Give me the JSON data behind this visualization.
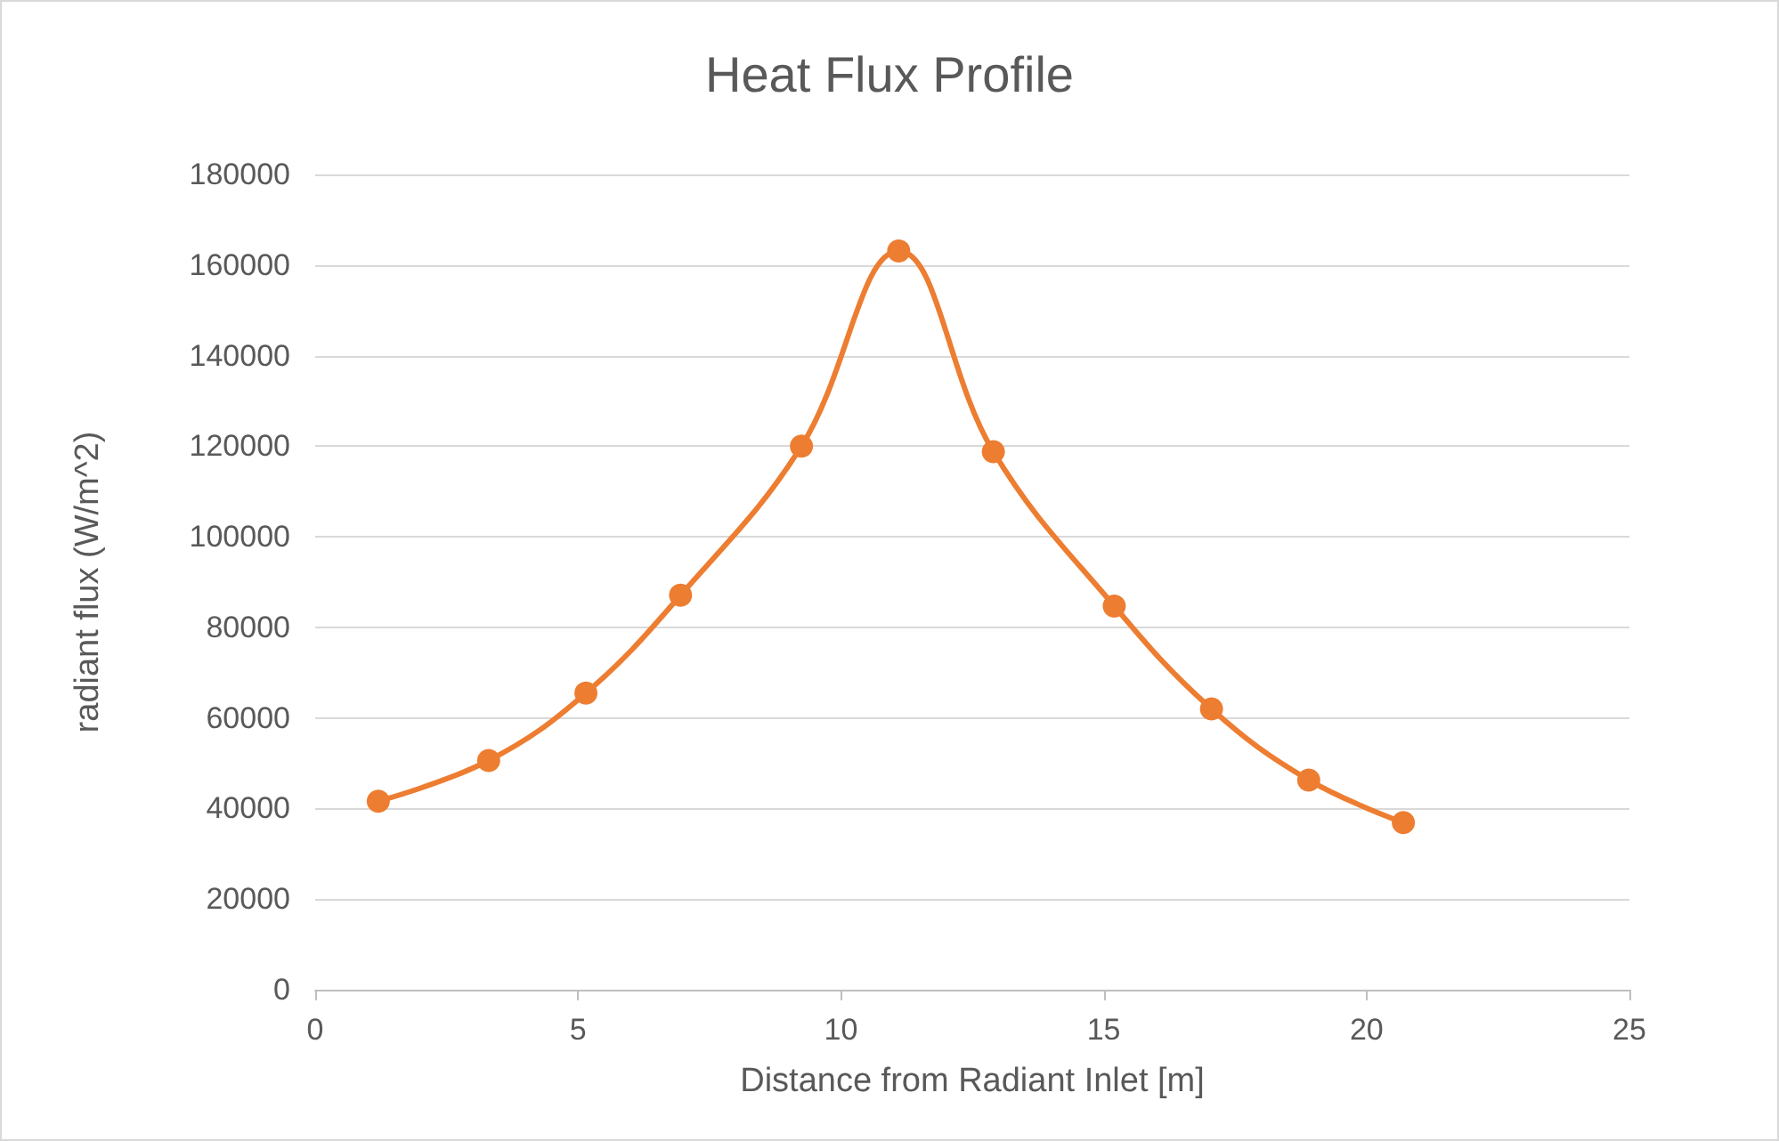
{
  "chart_data": {
    "type": "line",
    "title": "Heat Flux Profile",
    "xlabel": "Distance from Radiant Inlet [m]",
    "ylabel": "radiant flux (W/m^2)",
    "x": [
      1.2,
      3.3,
      5.15,
      6.95,
      9.25,
      11.1,
      12.9,
      15.2,
      17.05,
      18.9,
      20.7
    ],
    "series": [
      {
        "color": "#ed7d31",
        "values": [
          41600,
          50600,
          65500,
          87100,
          120000,
          163100,
          118800,
          84700,
          62000,
          46300,
          36900
        ]
      }
    ],
    "xlim": [
      0,
      25
    ],
    "xticks": [
      0,
      5,
      10,
      15,
      20,
      25
    ],
    "ylim": [
      0,
      180000
    ],
    "yticks": [
      0,
      20000,
      40000,
      60000,
      80000,
      100000,
      120000,
      140000,
      160000,
      180000
    ],
    "grid": "y",
    "marker": "circle",
    "line_style": "solid"
  }
}
